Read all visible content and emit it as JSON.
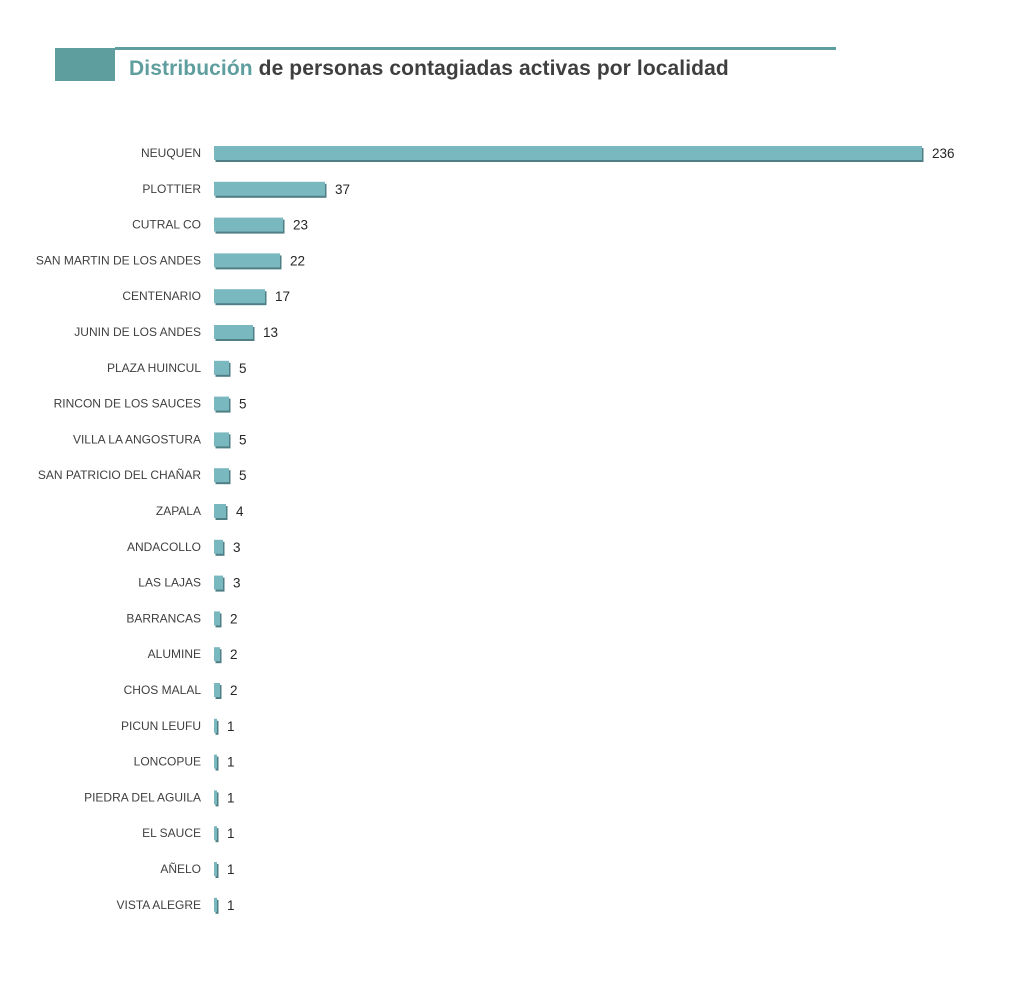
{
  "header": {
    "title_accent": "Distribución",
    "title_rest": " de personas contagiadas activas por localidad"
  },
  "colors": {
    "accent": "#5f9e9e",
    "bar": "#7ab8c0",
    "bar_shadow": "#4f7f85"
  },
  "chart_data": {
    "type": "bar",
    "orientation": "horizontal",
    "title": "Distribución de personas contagiadas activas por localidad",
    "categories": [
      "NEUQUEN",
      "PLOTTIER",
      "CUTRAL CO",
      "SAN MARTIN DE LOS ANDES",
      "CENTENARIO",
      "JUNIN DE LOS ANDES",
      "PLAZA HUINCUL",
      "RINCON DE LOS SAUCES",
      "VILLA LA ANGOSTURA",
      "SAN PATRICIO DEL CHAÑAR",
      "ZAPALA",
      "ANDACOLLO",
      "LAS LAJAS",
      "BARRANCAS",
      "ALUMINE",
      "CHOS MALAL",
      "PICUN LEUFU",
      "LONCOPUE",
      "PIEDRA DEL AGUILA",
      "EL SAUCE",
      "AÑELO",
      "VISTA ALEGRE"
    ],
    "values": [
      236,
      37,
      23,
      22,
      17,
      13,
      5,
      5,
      5,
      5,
      4,
      3,
      3,
      2,
      2,
      2,
      1,
      1,
      1,
      1,
      1,
      1
    ],
    "xlim": [
      0,
      236
    ],
    "grid": false,
    "legend": "none",
    "data_labels": true
  }
}
